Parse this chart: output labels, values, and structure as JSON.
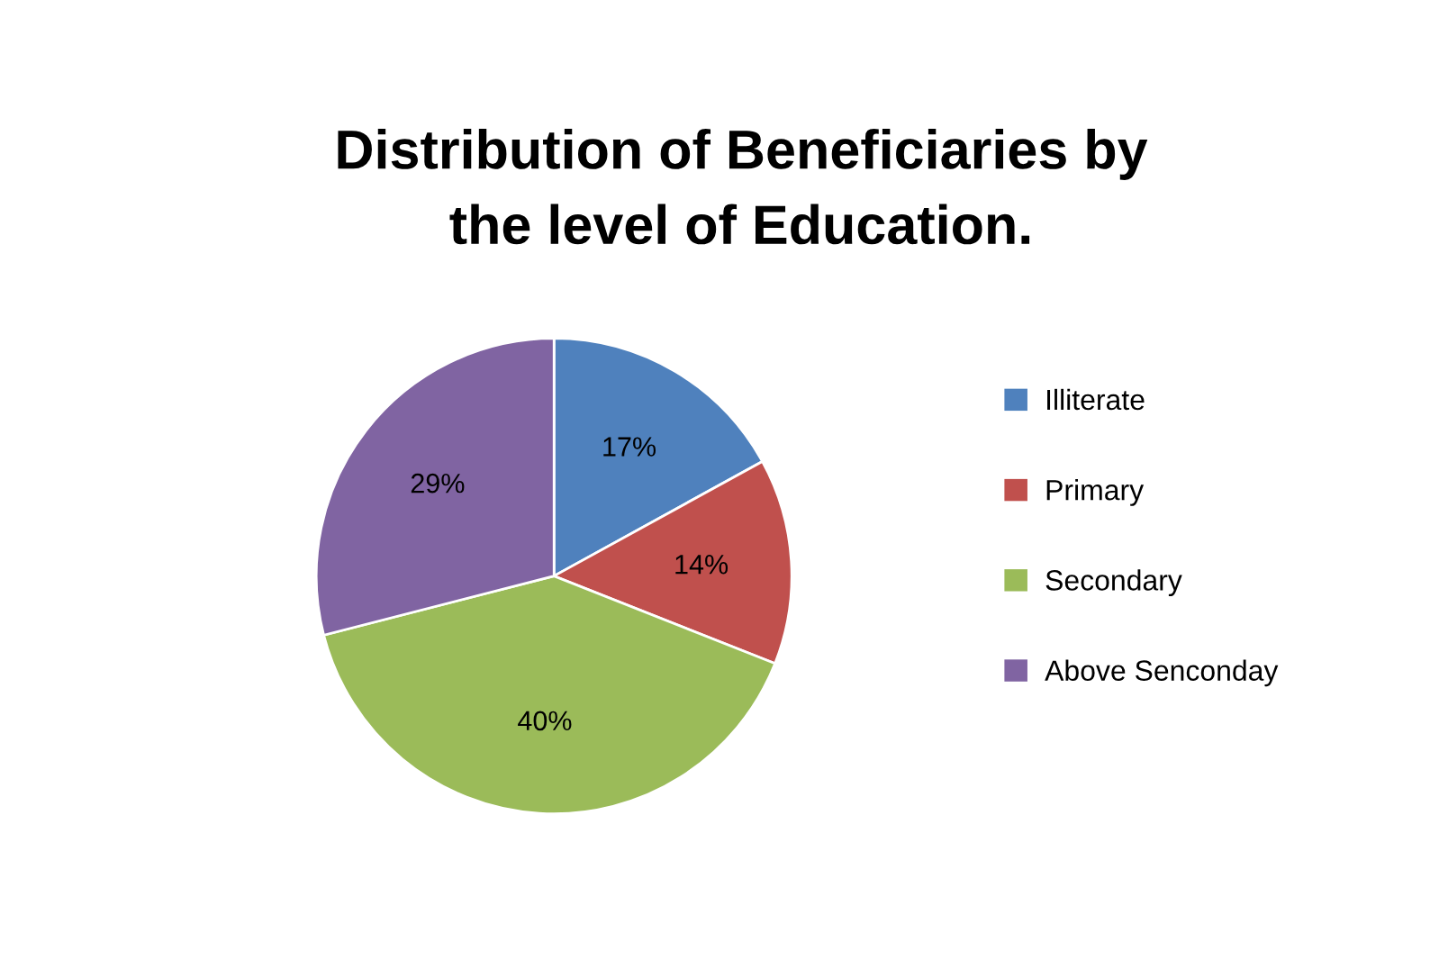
{
  "chart_data": {
    "type": "pie",
    "title": "Distribution of Beneficiaries by\nthe level of Education.",
    "categories": [
      "Illiterate",
      "Primary",
      "Secondary",
      "Above Senconday"
    ],
    "values": [
      17,
      14,
      40,
      29
    ],
    "value_labels": [
      "17%",
      "14%",
      "40%",
      "29%"
    ],
    "colors": [
      "#4f81bd",
      "#c0504d",
      "#9bbb59",
      "#8064a2"
    ],
    "legend": "right"
  }
}
